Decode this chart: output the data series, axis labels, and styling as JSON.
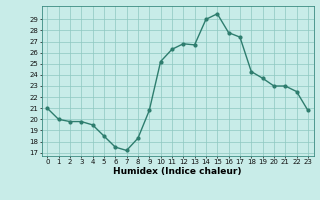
{
  "x": [
    0,
    1,
    2,
    3,
    4,
    5,
    6,
    7,
    8,
    9,
    10,
    11,
    12,
    13,
    14,
    15,
    16,
    17,
    18,
    19,
    20,
    21,
    22,
    23
  ],
  "y": [
    21,
    20,
    19.8,
    19.8,
    19.5,
    18.5,
    17.5,
    17.2,
    18.3,
    20.8,
    25.2,
    26.3,
    26.8,
    26.7,
    29.0,
    29.5,
    27.8,
    27.4,
    24.3,
    23.7,
    23.0,
    23.0,
    22.5,
    20.8
  ],
  "line_color": "#2e7d6e",
  "marker": "o",
  "markersize": 2.0,
  "linewidth": 1.0,
  "bg_color": "#c8ece8",
  "grid_color": "#8ec8c0",
  "ylabel_ticks": [
    17,
    18,
    19,
    20,
    21,
    22,
    23,
    24,
    25,
    26,
    27,
    28,
    29
  ],
  "xlabel": "Humidex (Indice chaleur)",
  "xlim": [
    -0.5,
    23.5
  ],
  "ylim": [
    16.7,
    30.2
  ],
  "tick_fontsize": 5.0,
  "xlabel_fontsize": 6.5
}
